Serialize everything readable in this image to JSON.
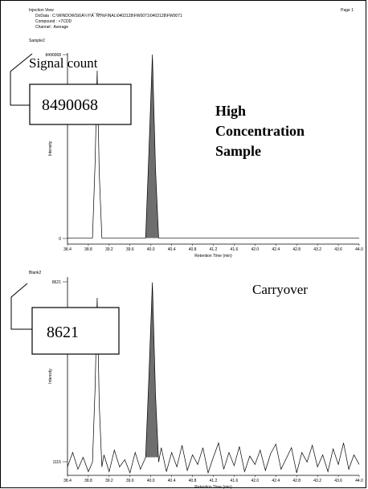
{
  "header": {
    "title": "Injection View",
    "page": "Page 1",
    "data_file": "DoData : C:\\WINDOWS\\ßÁ¼­Y\\Å¯Ñ¶%FINAL\\0402128\\FW0071\\0402128\\FW0071",
    "compound": "Compound : <7CDD",
    "channel": "Channel : Average"
  },
  "chart_data": [
    {
      "type": "line",
      "label": "Sample2",
      "x_label": "Retention Time (min)",
      "y_label": "Intensity",
      "color": "#000000",
      "shade_color": "#6e6e6e",
      "x": [
        38.4,
        38.88,
        38.93,
        38.97,
        39.01,
        39.06,
        39.9,
        39.96,
        40.03,
        40.09,
        40.15,
        44.0
      ],
      "values": [
        20000,
        20000,
        3500000,
        7750000,
        3000000,
        20000,
        20000,
        3800000,
        8490068,
        3200000,
        20000,
        20000
      ],
      "shaded_x_range": [
        39.9,
        40.15
      ],
      "xlim": [
        38.4,
        44.0
      ],
      "xticks": [
        38.4,
        38.8,
        39.2,
        39.6,
        {
          "value": 40.0,
          "label": "40.0"
        },
        40.4,
        40.8,
        41.2,
        41.6,
        {
          "value": 42.0,
          "label": "42.0"
        },
        42.4,
        42.8,
        43.2,
        43.6,
        {
          "value": 44.0,
          "label": "44.0"
        }
      ],
      "ylim": [
        -260000,
        8565000
      ],
      "yticks": [
        0,
        8490068
      ],
      "annotations": {
        "caption": "Signal count",
        "box": "8490068",
        "note": [
          "High",
          "Concentration",
          "Sample"
        ]
      }
    },
    {
      "type": "line",
      "label": "Blank2",
      "x_label": "Retention Time (min)",
      "y_label": "Intensity",
      "color": "#000000",
      "shade_color": "#6e6e6e",
      "x": [
        38.4,
        38.5,
        38.6,
        38.7,
        38.8,
        38.88,
        38.93,
        38.97,
        39.01,
        39.06,
        39.1,
        39.2,
        39.3,
        39.4,
        39.5,
        39.6,
        39.7,
        39.8,
        39.9,
        39.96,
        40.03,
        40.09,
        40.15,
        40.2,
        40.3,
        40.4,
        40.5,
        40.6,
        40.7,
        40.8,
        40.9,
        41.0,
        41.1,
        41.2,
        41.3,
        41.4,
        41.5,
        41.6,
        41.7,
        41.8,
        41.9,
        42.0,
        42.1,
        42.2,
        42.3,
        42.4,
        42.5,
        42.6,
        42.7,
        42.8,
        42.9,
        43.0,
        43.1,
        43.2,
        43.3,
        43.4,
        43.5,
        43.6,
        43.7,
        43.8,
        43.9,
        44.0
      ],
      "values": [
        900,
        1500,
        800,
        1300,
        700,
        1100,
        4200,
        7950,
        3500,
        900,
        1400,
        700,
        1600,
        900,
        1200,
        650,
        1500,
        800,
        1300,
        4500,
        8600,
        3900,
        1100,
        1700,
        700,
        1500,
        900,
        1800,
        750,
        1400,
        1000,
        1700,
        650,
        1300,
        1900,
        800,
        1500,
        950,
        1750,
        700,
        1350,
        1000,
        1600,
        750,
        1450,
        1850,
        800,
        1250,
        1700,
        650,
        1500,
        1100,
        1800,
        900,
        1400,
        700,
        1650,
        1000,
        1900,
        800,
        1400,
        1000
      ],
      "shaded_x_range": [
        39.9,
        40.15
      ],
      "xlim": [
        38.4,
        44.0
      ],
      "xticks": [
        38.4,
        38.8,
        39.2,
        39.6,
        {
          "value": 40.0,
          "label": "40.0"
        },
        40.4,
        40.8,
        41.2,
        41.6,
        {
          "value": 42.0,
          "label": "42.0"
        },
        42.4,
        42.8,
        43.2,
        43.6,
        {
          "value": 44.0,
          "label": "44.0"
        }
      ],
      "ylim": [
        546,
        8822
      ],
      "yticks": [
        1115,
        8621
      ],
      "annotations": {
        "caption": "Carryover",
        "box": "8621"
      }
    }
  ]
}
